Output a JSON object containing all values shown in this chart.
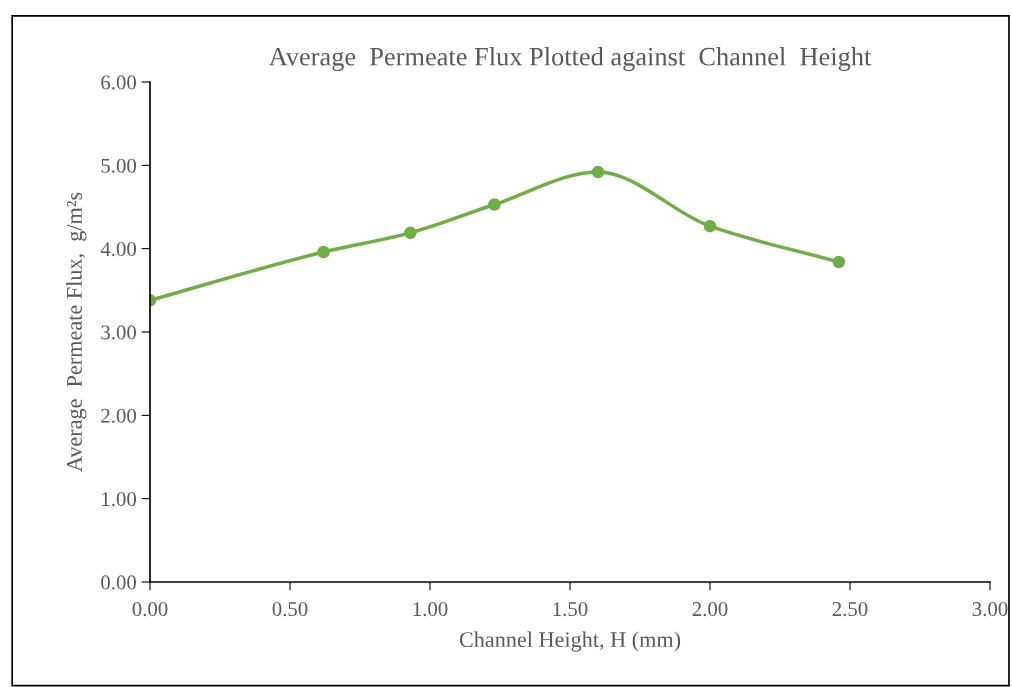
{
  "chart_data": {
    "type": "line",
    "title": "Average  Permeate Flux Plotted against  Channel  Height",
    "xlabel": "Channel Height, H (mm)",
    "ylabel": "Average  Permeate Flux,  g/m²s",
    "x": [
      0.0,
      0.62,
      0.93,
      1.23,
      1.6,
      2.0,
      2.46
    ],
    "series": [
      {
        "color": "#70ad47",
        "values": [
          3.38,
          3.96,
          4.19,
          4.53,
          4.92,
          4.27,
          3.84
        ]
      }
    ],
    "xlim": [
      0,
      3
    ],
    "xticks": [
      {
        "value": 0,
        "label": "0.00"
      },
      {
        "value": 0.5,
        "label": "0.50"
      },
      {
        "value": 1,
        "label": "1.00"
      },
      {
        "value": 1.5,
        "label": "1.50"
      },
      {
        "value": 2,
        "label": "2.00"
      },
      {
        "value": 2.5,
        "label": "2.50"
      },
      {
        "value": 3,
        "label": "3.00"
      }
    ],
    "ylim": [
      0,
      6
    ],
    "yticks": [
      {
        "value": 0,
        "label": "0.00"
      },
      {
        "value": 1,
        "label": "1.00"
      },
      {
        "value": 2,
        "label": "2.00"
      },
      {
        "value": 3,
        "label": "3.00"
      },
      {
        "value": 4,
        "label": "4.00"
      },
      {
        "value": 5,
        "label": "5.00"
      },
      {
        "value": 6,
        "label": "6.00"
      }
    ],
    "marker": "circle",
    "line_style": "solid",
    "grid": false,
    "legend": false
  }
}
